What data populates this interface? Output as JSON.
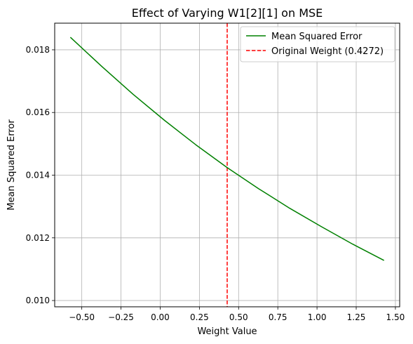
{
  "chart_data": {
    "type": "line",
    "title": "Effect of Varying W1[2][1] on MSE",
    "xlabel": "Weight Value",
    "ylabel": "Mean Squared Error",
    "xlim": [
      -0.6728,
      1.5272
    ],
    "ylim": [
      0.0098,
      0.01885
    ],
    "grid": true,
    "legend_position": "top-right",
    "x_ticks": [
      -0.5,
      -0.25,
      0.0,
      0.25,
      0.5,
      0.75,
      1.0,
      1.25,
      1.5
    ],
    "x_tick_labels": [
      "−0.50",
      "−0.25",
      "0.00",
      "0.25",
      "0.50",
      "0.75",
      "1.00",
      "1.25",
      "1.50"
    ],
    "y_ticks": [
      0.01,
      0.012,
      0.014,
      0.016,
      0.018
    ],
    "y_tick_labels": [
      "0.010",
      "0.012",
      "0.014",
      "0.016",
      "0.018"
    ],
    "series": [
      {
        "name": "Mean Squared Error",
        "color": "#008000",
        "style": "solid",
        "x": [
          -0.5728,
          -0.3728,
          -0.1728,
          0.0272,
          0.2272,
          0.4272,
          0.6272,
          0.8272,
          1.0272,
          1.2272,
          1.4272
        ],
        "y": [
          0.0184,
          0.01747,
          0.01658,
          0.01575,
          0.01497,
          0.01424,
          0.01357,
          0.01294,
          0.01236,
          0.0118,
          0.01128
        ]
      }
    ],
    "reference_lines": [
      {
        "name": "Original Weight (0.4272)",
        "color": "#ff0000",
        "style": "dashed",
        "orientation": "vertical",
        "x": 0.4272
      }
    ]
  }
}
